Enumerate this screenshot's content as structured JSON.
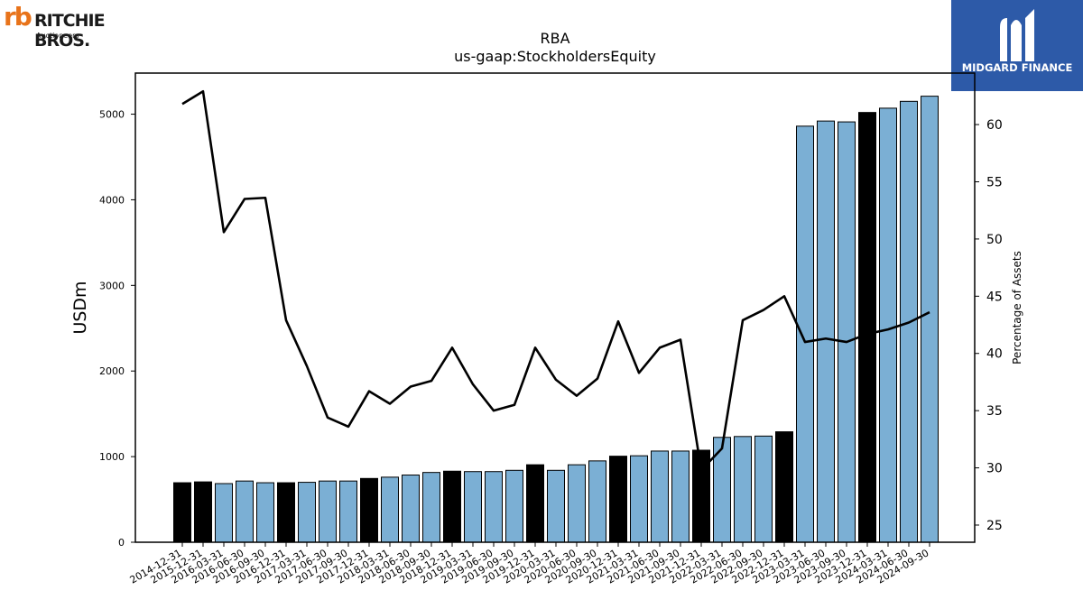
{
  "logos": {
    "left_mark": "rb",
    "left_name": "RITCHIE BROS.",
    "left_sub": "Auctioneers",
    "right_name": "MIDGARD FINANCE"
  },
  "colors": {
    "bar_default": "#7bafd4",
    "bar_highlight": "#000000",
    "line": "#000000",
    "brand_orange": "#e8731a",
    "brand_blue": "#2d5aa8"
  },
  "chart_data": {
    "type": "bar",
    "title": "RBA",
    "subtitle": "us-gaap:StockholdersEquity",
    "ylabel": "USDm",
    "y2label": "Percentage of Assets",
    "ylim": [
      0,
      5480
    ],
    "y2lim": [
      23.5,
      64.5
    ],
    "yticks": [
      0,
      1000,
      2000,
      3000,
      4000,
      5000
    ],
    "y2ticks": [
      25,
      30,
      35,
      40,
      45,
      50,
      55,
      60
    ],
    "grid": false,
    "categories": [
      "2014-12-31",
      "2015-12-31",
      "2016-03-31",
      "2016-06-30",
      "2016-09-30",
      "2016-12-31",
      "2017-03-31",
      "2017-06-30",
      "2017-09-30",
      "2017-12-31",
      "2018-03-31",
      "2018-06-30",
      "2018-09-30",
      "2018-12-31",
      "2019-03-31",
      "2019-06-30",
      "2019-09-30",
      "2019-12-31",
      "2020-03-31",
      "2020-06-30",
      "2020-09-30",
      "2020-12-31",
      "2021-03-31",
      "2021-06-30",
      "2021-09-30",
      "2021-12-31",
      "2022-03-31",
      "2022-06-30",
      "2022-09-30",
      "2022-12-31",
      "2023-03-31",
      "2023-06-30",
      "2023-09-30",
      "2023-12-31",
      "2024-03-31",
      "2024-06-30",
      "2024-09-30"
    ],
    "series": [
      {
        "kind": "bar",
        "axis": "left",
        "values": [
          695,
          705,
          685,
          715,
          695,
          695,
          700,
          715,
          715,
          745,
          760,
          785,
          815,
          830,
          825,
          825,
          840,
          905,
          840,
          905,
          950,
          1005,
          1010,
          1065,
          1065,
          1075,
          1225,
          1235,
          1240,
          1290,
          4860,
          4920,
          4910,
          5020,
          5070,
          5150,
          5210
        ],
        "highlight": [
          true,
          true,
          false,
          false,
          false,
          true,
          false,
          false,
          false,
          true,
          false,
          false,
          false,
          true,
          false,
          false,
          false,
          true,
          false,
          false,
          false,
          true,
          false,
          false,
          false,
          true,
          false,
          false,
          false,
          true,
          false,
          false,
          false,
          true,
          false,
          false,
          false
        ]
      },
      {
        "kind": "line",
        "axis": "right",
        "values": [
          61.8,
          62.9,
          50.6,
          53.5,
          53.6,
          42.9,
          38.9,
          34.4,
          33.6,
          36.7,
          35.6,
          37.1,
          37.6,
          40.5,
          37.3,
          35.0,
          35.5,
          40.5,
          37.7,
          36.3,
          37.8,
          42.8,
          38.3,
          40.5,
          41.2,
          29.8,
          31.7,
          42.9,
          43.8,
          45.0,
          41.0,
          41.3,
          41.0,
          41.7,
          42.1,
          42.7,
          43.6
        ]
      }
    ]
  }
}
